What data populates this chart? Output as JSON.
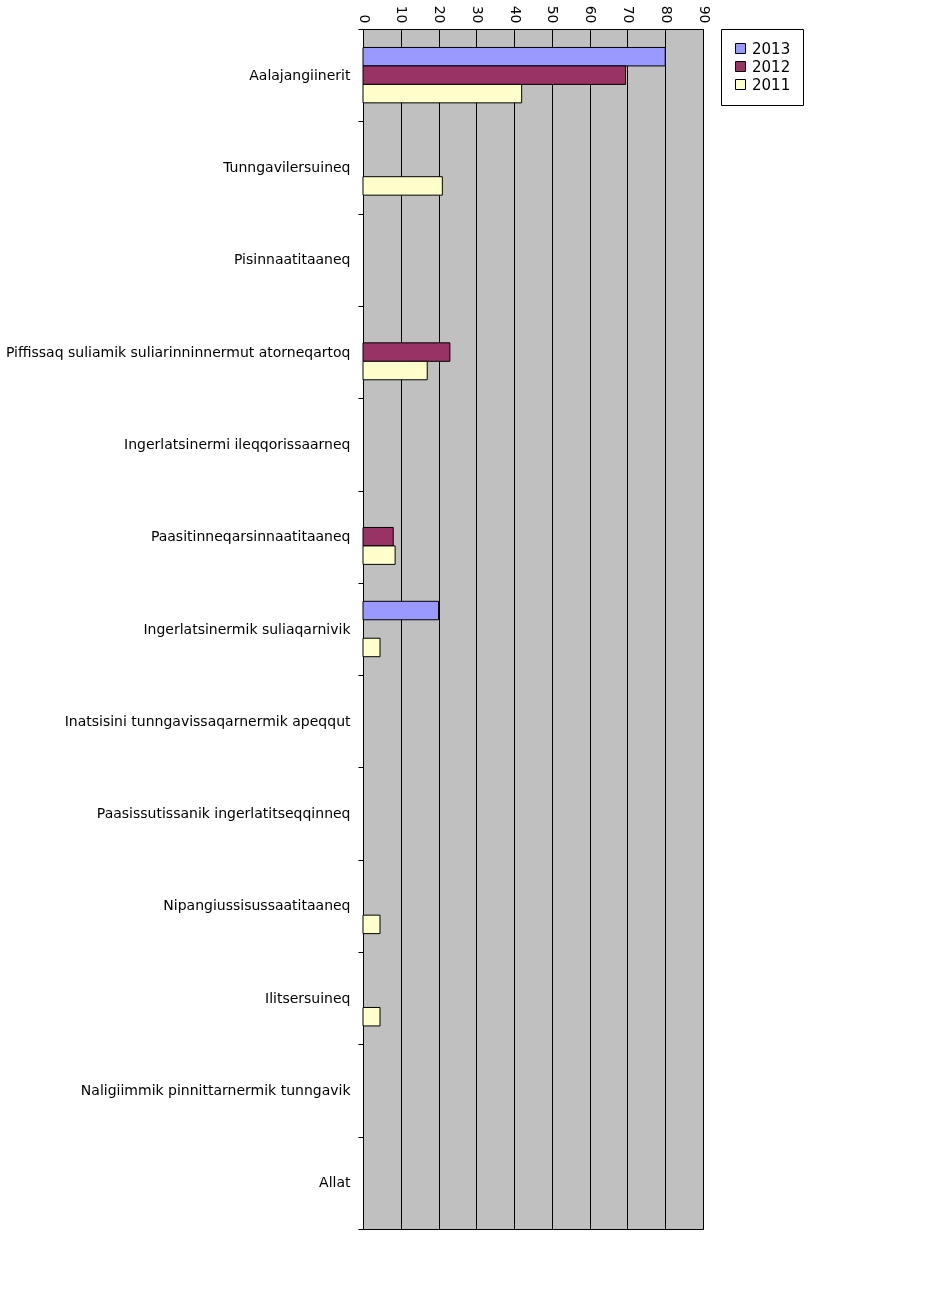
{
  "chart_data": {
    "type": "bar",
    "orientation": "horizontal",
    "categories": [
      "Aalajangiinerit",
      "Tunngavilersuineq",
      "Pisinnaatitaaneq",
      "Piffissaq suliamik suliarinninnermut atorneqartoq",
      "Ingerlatsinermi ileqqorissaarneq",
      "Paasitinneqarsinnaatitaaneq",
      "Ingerlatsinermik suliaqarnivik",
      "Inatsisini tunngavissaqarnermik apeqqut",
      "Paasissutissanik ingerlatitseqqinneq",
      "Nipangiussisussaatitaaneq",
      "Ilitsersuineq",
      "Naligiimmik pinnittarnermik tunngavik",
      "Allat"
    ],
    "series": [
      {
        "name": "2013",
        "color": "#9999ff",
        "values": [
          80,
          null,
          null,
          null,
          null,
          null,
          20,
          null,
          null,
          null,
          null,
          null,
          null
        ]
      },
      {
        "name": "2012",
        "color": "#993366",
        "values": [
          69.5,
          null,
          null,
          23,
          null,
          8,
          null,
          null,
          null,
          null,
          null,
          null,
          null
        ]
      },
      {
        "name": "2011",
        "color": "#ffffcc",
        "values": [
          42,
          21,
          null,
          17,
          null,
          8.5,
          4.5,
          null,
          null,
          4.5,
          4.5,
          null,
          null
        ]
      }
    ],
    "xlim": [
      0,
      90
    ],
    "xticks": [
      0,
      10,
      20,
      30,
      40,
      50,
      60,
      70,
      80,
      90
    ],
    "grid": "x",
    "legend": "right"
  }
}
